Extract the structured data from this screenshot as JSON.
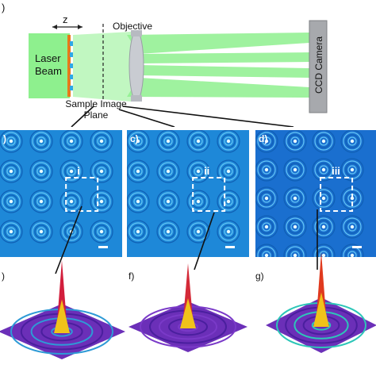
{
  "figure": {
    "panel_a_letter": ")",
    "dimension_label": "z",
    "objective_label": "Objective",
    "laser_label_line1": "Laser",
    "laser_label_line2": "Beam",
    "camera_label": "CCD Camera",
    "sample_plane_line1": "Sample Image",
    "sample_plane_line2": "Plane",
    "colors": {
      "beam": "#8ef08e",
      "lens": "#c9ccd2",
      "camera": "#a7a9ad",
      "wafer_orange": "#e8791a",
      "wafer_blue": "#2fa7e6",
      "image_bg": "#1f86d6",
      "surface_purple": "#6b2fb8"
    }
  },
  "panels": [
    {
      "letter": ")",
      "roman": "i"
    },
    {
      "letter": "c)",
      "roman": "ii"
    },
    {
      "letter": "d)",
      "roman": "iii"
    }
  ],
  "surfaces": [
    {
      "letter": ")"
    },
    {
      "letter": "f)"
    },
    {
      "letter": "g)"
    }
  ]
}
